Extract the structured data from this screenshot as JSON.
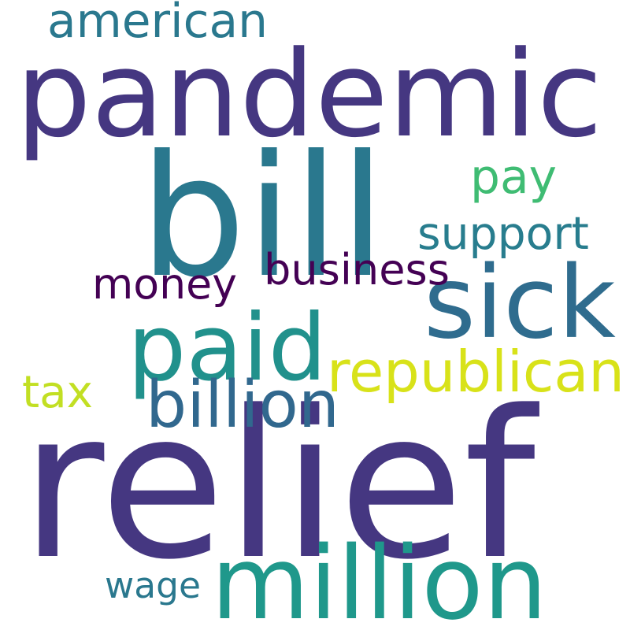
{
  "words": [
    {
      "key": "pandemic",
      "text": "pandemic",
      "color": "#453781"
    },
    {
      "key": "relief",
      "text": "relief",
      "color": "#453781"
    },
    {
      "key": "bill",
      "text": "bill",
      "color": "#2a788e"
    },
    {
      "key": "sick",
      "text": "sick",
      "color": "#2f6c8e"
    },
    {
      "key": "paid",
      "text": "paid",
      "color": "#21918c"
    },
    {
      "key": "million",
      "text": "million",
      "color": "#1f988b"
    },
    {
      "key": "republican",
      "text": "republican",
      "color": "#d8e219"
    },
    {
      "key": "money",
      "text": "money",
      "color": "#440154"
    },
    {
      "key": "american",
      "text": "american",
      "color": "#2a788e"
    },
    {
      "key": "pay",
      "text": "pay",
      "color": "#3fbc73"
    },
    {
      "key": "support",
      "text": "support",
      "color": "#287d8e"
    },
    {
      "key": "business",
      "text": "business",
      "color": "#440154"
    },
    {
      "key": "billion",
      "text": "billion",
      "color": "#31688e"
    },
    {
      "key": "tax",
      "text": "tax",
      "color": "#c2df23"
    },
    {
      "key": "wage",
      "text": "wage",
      "color": "#2a788e"
    }
  ]
}
